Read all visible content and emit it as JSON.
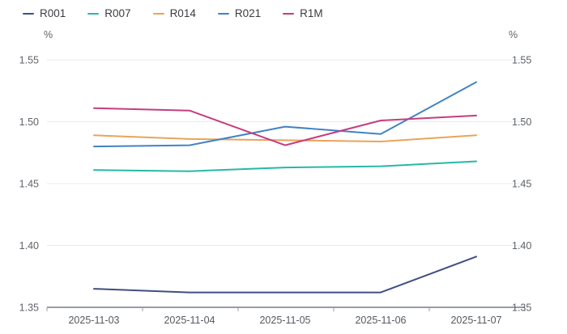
{
  "chart_data": {
    "type": "line",
    "title": "",
    "y_unit": "%",
    "categories": [
      "2025-11-03",
      "2025-11-04",
      "2025-11-05",
      "2025-11-06",
      "2025-11-07"
    ],
    "series": [
      {
        "name": "R001",
        "color": "#414d84",
        "values": [
          1.365,
          1.362,
          1.362,
          1.362,
          1.391
        ]
      },
      {
        "name": "R007",
        "color": "#27b8a5",
        "values": [
          1.461,
          1.46,
          1.463,
          1.464,
          1.468
        ]
      },
      {
        "name": "R014",
        "color": "#e9a45a",
        "values": [
          1.489,
          1.486,
          1.485,
          1.484,
          1.489
        ]
      },
      {
        "name": "R021",
        "color": "#4183c4",
        "values": [
          1.48,
          1.481,
          1.496,
          1.49,
          1.532
        ]
      },
      {
        "name": "R1M",
        "color": "#c53d7e",
        "values": [
          1.511,
          1.509,
          1.481,
          1.501,
          1.505
        ]
      }
    ],
    "xlabel": "",
    "ylabel": "%",
    "ylim": [
      1.35,
      1.55
    ],
    "y_ticks": [
      "1.55",
      "1.50",
      "1.45",
      "1.40",
      "1.35"
    ],
    "grid": true,
    "legend_position": "top-left",
    "dual_y_axis": true,
    "colors": {
      "gridline": "#ebebf0",
      "axis_line": "#767b85",
      "tick": "#9a9fa8",
      "axis_text": "#5f6368",
      "legend_text": "#3c3c42"
    }
  }
}
